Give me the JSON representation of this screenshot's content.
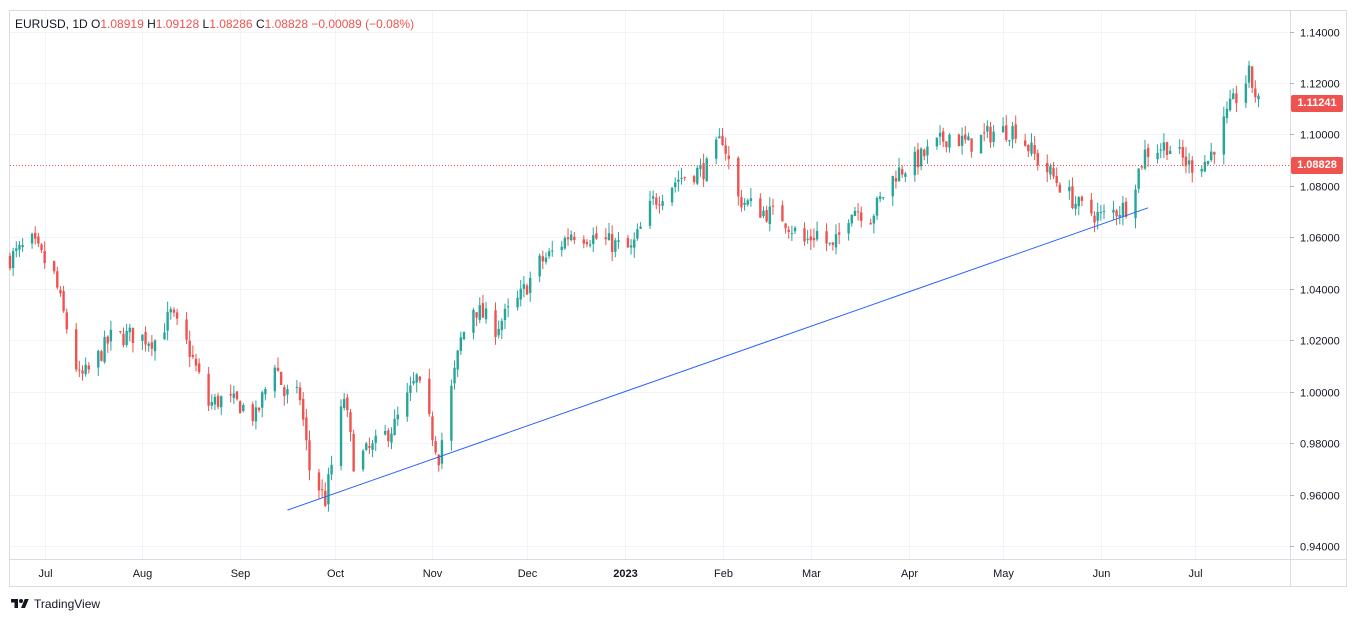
{
  "legend": {
    "symbol": "EURUSD",
    "interval": "1D",
    "open_label": "O",
    "open": "1.08919",
    "high_label": "H",
    "high": "1.09128",
    "low_label": "L",
    "low": "1.08286",
    "close_label": "C",
    "close": "1.08828",
    "change": "−0.00089 (−0.08%)"
  },
  "brand": {
    "name": "TradingView",
    "icon": "tradingview-logo-icon"
  },
  "price_tags": {
    "last": {
      "label": "1.11241",
      "value": 1.11241,
      "color": "#ef5350"
    },
    "crosshair": {
      "label": "1.08828",
      "value": 1.08828,
      "color": "#ef5350"
    }
  },
  "chart_data": {
    "type": "candlestick",
    "y_ticks": [
      "1.14000",
      "1.12000",
      "1.10000",
      "1.08000",
      "1.06000",
      "1.04000",
      "1.02000",
      "1.00000",
      "0.98000",
      "0.96000",
      "0.94000"
    ],
    "y_tick_values": [
      1.14,
      1.12,
      1.1,
      1.08,
      1.06,
      1.04,
      1.02,
      1.0,
      0.98,
      0.96,
      0.94
    ],
    "ylim": [
      0.935,
      1.148
    ],
    "x_ticks": [
      {
        "label": "Jul",
        "date": "2022-07-01"
      },
      {
        "label": "Aug",
        "date": "2022-08-01"
      },
      {
        "label": "Sep",
        "date": "2022-09-01"
      },
      {
        "label": "Oct",
        "date": "2022-10-01"
      },
      {
        "label": "Nov",
        "date": "2022-11-01"
      },
      {
        "label": "Dec",
        "date": "2022-12-01"
      },
      {
        "label": "2023",
        "date": "2023-01-01",
        "bold": true
      },
      {
        "label": "Feb",
        "date": "2023-02-01"
      },
      {
        "label": "Mar",
        "date": "2023-03-01"
      },
      {
        "label": "Apr",
        "date": "2023-04-01"
      },
      {
        "label": "May",
        "date": "2023-05-01"
      },
      {
        "label": "Jun",
        "date": "2023-06-01"
      },
      {
        "label": "Jul",
        "date": "2023-07-01"
      }
    ],
    "xlim": [
      "2022-06-20",
      "2023-07-31"
    ],
    "up_color": "#26a69a",
    "down_color": "#ef5350",
    "grid": true,
    "close_path": [
      [
        "2022-06-20",
        1.052
      ],
      [
        "2022-06-27",
        1.058
      ],
      [
        "2022-07-04",
        1.045
      ],
      [
        "2022-07-12",
        1.005
      ],
      [
        "2022-07-15",
        1.008
      ],
      [
        "2022-07-22",
        1.021
      ],
      [
        "2022-07-29",
        1.022
      ],
      [
        "2022-08-05",
        1.02
      ],
      [
        "2022-08-10",
        1.03
      ],
      [
        "2022-08-16",
        1.016
      ],
      [
        "2022-08-22",
        0.995
      ],
      [
        "2022-08-26",
        0.997
      ],
      [
        "2022-09-01",
        0.995
      ],
      [
        "2022-09-06",
        0.99
      ],
      [
        "2022-09-12",
        1.012
      ],
      [
        "2022-09-15",
        0.999
      ],
      [
        "2022-09-20",
        0.998
      ],
      [
        "2022-09-23",
        0.97
      ],
      [
        "2022-09-28",
        0.958
      ],
      [
        "2022-10-04",
        0.998
      ],
      [
        "2022-10-07",
        0.973
      ],
      [
        "2022-10-13",
        0.978
      ],
      [
        "2022-10-20",
        0.987
      ],
      [
        "2022-10-27",
        1.005
      ],
      [
        "2022-11-03",
        0.975
      ],
      [
        "2022-11-10",
        1.02
      ],
      [
        "2022-11-14",
        1.033
      ],
      [
        "2022-11-21",
        1.025
      ],
      [
        "2022-11-28",
        1.035
      ],
      [
        "2022-12-05",
        1.05
      ],
      [
        "2022-12-10",
        1.055
      ],
      [
        "2022-12-15",
        1.062
      ],
      [
        "2022-12-22",
        1.06
      ],
      [
        "2023-01-03",
        1.055
      ],
      [
        "2023-01-10",
        1.074
      ],
      [
        "2023-01-18",
        1.083
      ],
      [
        "2023-01-27",
        1.087
      ],
      [
        "2023-02-01",
        1.099
      ],
      [
        "2023-02-06",
        1.075
      ],
      [
        "2023-02-14",
        1.07
      ],
      [
        "2023-02-20",
        1.068
      ],
      [
        "2023-02-27",
        1.058
      ],
      [
        "2023-03-03",
        1.062
      ],
      [
        "2023-03-08",
        1.055
      ],
      [
        "2023-03-14",
        1.072
      ],
      [
        "2023-03-20",
        1.068
      ],
      [
        "2023-03-28",
        1.085
      ],
      [
        "2023-04-05",
        1.091
      ],
      [
        "2023-04-14",
        1.1
      ],
      [
        "2023-04-20",
        1.096
      ],
      [
        "2023-04-28",
        1.101
      ],
      [
        "2023-05-05",
        1.102
      ],
      [
        "2023-05-12",
        1.09
      ],
      [
        "2023-05-18",
        1.082
      ],
      [
        "2023-05-25",
        1.072
      ],
      [
        "2023-06-01",
        1.068
      ],
      [
        "2023-06-09",
        1.072
      ],
      [
        "2023-06-15",
        1.093
      ],
      [
        "2023-06-22",
        1.096
      ],
      [
        "2023-06-29",
        1.088
      ],
      [
        "2023-07-05",
        1.09
      ],
      [
        "2023-07-12",
        1.11
      ],
      [
        "2023-07-18",
        1.123
      ],
      [
        "2023-07-21",
        1.112
      ]
    ],
    "trendline": {
      "start": [
        "2022-09-16",
        0.954
      ],
      "end": [
        "2023-06-16",
        1.0715
      ],
      "color": "#2962ff"
    },
    "horizontal_line": {
      "value": 1.08828,
      "color": "#ef5350",
      "style": "dotted"
    }
  }
}
